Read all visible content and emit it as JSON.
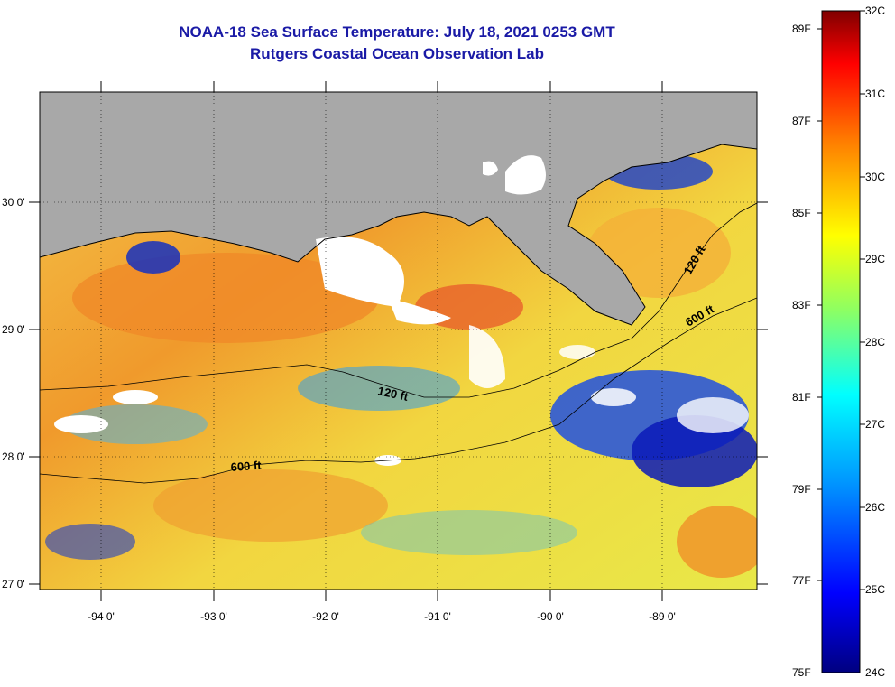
{
  "title": {
    "line1": "NOAA-18 Sea Surface Temperature:  July 18, 2021 0253 GMT",
    "line2": "Rutgers Coastal Ocean Observation Lab"
  },
  "map": {
    "lon_ticks": [
      "-94 0'",
      "-93 0'",
      "-92 0'",
      "-91 0'",
      "-90 0'",
      "-89 0'"
    ],
    "lat_ticks": [
      "30 0'",
      "29 0'",
      "28 0'",
      "27 0'"
    ],
    "lon_range": [
      -94.5,
      -88.3
    ],
    "lat_range": [
      27.0,
      30.9
    ],
    "contours": [
      "120 ft",
      "600 ft",
      "120 ft",
      "600 ft"
    ],
    "colors": {
      "land": "#a8a8a8",
      "cloud": "#ffffff",
      "coastline": "#000000"
    }
  },
  "colorbar": {
    "fahrenheit_labels": [
      "89F",
      "87F",
      "85F",
      "83F",
      "81F",
      "79F",
      "77F",
      "75F"
    ],
    "celsius_labels": [
      "32C",
      "31C",
      "30C",
      "29C",
      "28C",
      "27C",
      "26C",
      "25C",
      "24C"
    ],
    "range_c": [
      24,
      32
    ],
    "gradient": [
      "#000080",
      "#0000ff",
      "#0080ff",
      "#00ffff",
      "#80ff80",
      "#ffff00",
      "#ff8000",
      "#ff0000",
      "#800000"
    ]
  }
}
